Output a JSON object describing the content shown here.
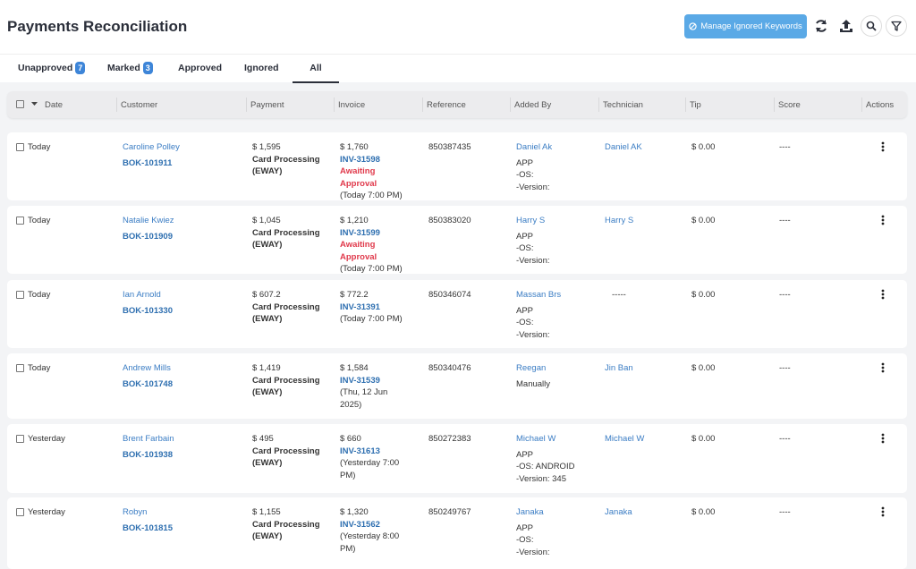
{
  "header": {
    "title": "Payments Reconciliation",
    "button": "Manage Ignored Keywords"
  },
  "tabs": [
    {
      "label": "Unapproved",
      "count": 7
    },
    {
      "label": "Marked",
      "count": 3
    },
    {
      "label": "Approved"
    },
    {
      "label": "Ignored"
    },
    {
      "label": "All"
    }
  ],
  "active_tab": 4,
  "table": {
    "columns": [
      "Date",
      "Customer",
      "Payment",
      "Invoice",
      "Reference",
      "Added By",
      "Technician",
      "Tip",
      "Score",
      "Actions"
    ],
    "rows": [
      {
        "date": "Today",
        "customer": "Caroline Polley",
        "booking": "BOK-101911",
        "payment": "$ 1,595",
        "method": [
          "Card Processing",
          "(EWAY)"
        ],
        "invoice_amount": "$ 1,760",
        "invoice": "INV-31598",
        "status": "Awaiting Approval",
        "invoice_time": "(Today 7:00 PM)",
        "reference": "850387435",
        "added_by": "Daniel Ak",
        "source": [
          "APP",
          "-OS:",
          "-Version:"
        ],
        "technician": "Daniel AK",
        "tip": "$ 0.00",
        "score": "----"
      },
      {
        "date": "Today",
        "customer": "Natalie Kwiez",
        "booking": "BOK-101909",
        "payment": "$ 1,045",
        "method": [
          "Card Processing",
          "(EWAY)"
        ],
        "invoice_amount": "$ 1,210",
        "invoice": "INV-31599",
        "status": "Awaiting Approval",
        "invoice_time": "(Today 7:00 PM)",
        "reference": "850383020",
        "added_by": "Harry S",
        "source": [
          "APP",
          "-OS:",
          "-Version:"
        ],
        "technician": "Harry S",
        "tip": "$ 0.00",
        "score": "----"
      },
      {
        "date": "Today",
        "customer": "Ian Arnold",
        "booking": "BOK-101330",
        "payment": "$ 607.2",
        "method": [
          "Card Processing",
          "(EWAY)"
        ],
        "invoice_amount": "$ 772.2",
        "invoice": "INV-31391",
        "invoice_time": "(Today 7:00 PM)",
        "reference": "850346074",
        "added_by": "Massan Brs",
        "source": [
          "APP",
          "-OS:",
          "-Version:"
        ],
        "technician_empty": "-----",
        "tip": "$ 0.00",
        "score": "----"
      },
      {
        "date": "Today",
        "customer": "Andrew Mills",
        "booking": "BOK-101748",
        "payment": "$ 1,419",
        "method": [
          "Card Processing",
          "(EWAY)"
        ],
        "invoice_amount": "$ 1,584",
        "invoice": "INV-31539",
        "invoice_time": "(Thu, 12 Jun 2025)",
        "reference": "850340476",
        "added_by": "Reegan",
        "source": [
          "Manually"
        ],
        "technician": "Jin Ban",
        "tip": "$ 0.00",
        "score": "----"
      },
      {
        "date": "Yesterday",
        "customer": "Brent Farbain",
        "booking": "BOK-101938",
        "payment": "$ 495",
        "method": [
          "Card Processing",
          "(EWAY)"
        ],
        "invoice_amount": "$ 660",
        "invoice": "INV-31613",
        "invoice_time": "(Yesterday 7:00 PM)",
        "reference": "850272383",
        "added_by": "Michael W",
        "source": [
          "APP",
          "-OS: ANDROID",
          "-Version: 345"
        ],
        "technician": "Michael W",
        "tip": "$ 0.00",
        "score": "----"
      },
      {
        "date": "Yesterday",
        "customer": "Robyn",
        "booking": "BOK-101815",
        "payment": "$ 1,155",
        "method": [
          "Card Processing",
          "(EWAY)"
        ],
        "invoice_amount": "$ 1,320",
        "invoice": "INV-31562",
        "invoice_time": "(Yesterday 8:00 PM)",
        "reference": "850249767",
        "added_by": "Janaka",
        "source": [
          "APP",
          "-OS:",
          "-Version:"
        ],
        "technician": "Janaka",
        "tip": "$ 0.00",
        "score": "----"
      }
    ]
  }
}
